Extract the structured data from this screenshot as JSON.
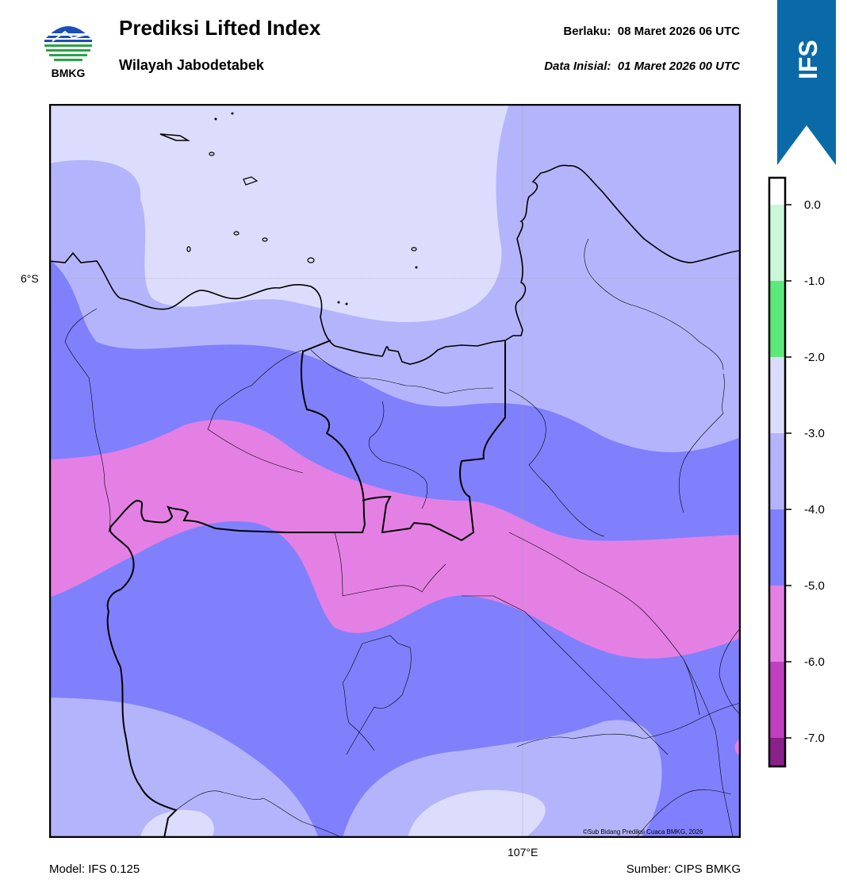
{
  "header": {
    "logo_text": "BMKG",
    "title": "Prediksi Lifted Index",
    "subtitle": "Wilayah Jabodetabek",
    "valid_label": "Berlaku:",
    "valid_value": "08 Maret 2026 06 UTC",
    "init_label": "Data Inisial:",
    "init_value": "01 Maret 2026 00 UTC"
  },
  "badge": {
    "text": "IFS",
    "color": "#0a6aa8"
  },
  "map": {
    "lat_label": "6°S",
    "lon_label": "107°E",
    "copyright": "©Sub Bidang Prediksi Cuaca BMKG, 2026"
  },
  "colorbar": {
    "ticks": [
      "0.0",
      "-1.0",
      "-2.0",
      "-3.0",
      "-4.0",
      "-5.0",
      "-6.0",
      "-7.0"
    ],
    "colors": {
      "gt_-1": "#c9f9d8",
      "-1_to_-2": "#5ce87a",
      "-2_to_-3": "#dcdcfc",
      "-3_to_-4": "#b4b4fc",
      "-4_to_-5": "#8080fc",
      "-5_to_-6": "#e480e4",
      "-6_to_-7": "#c040c0",
      "lt_-7": "#8a208a"
    }
  },
  "footer": {
    "model": "Model: IFS 0.125",
    "source": "Sumber: CIPS BMKG"
  }
}
